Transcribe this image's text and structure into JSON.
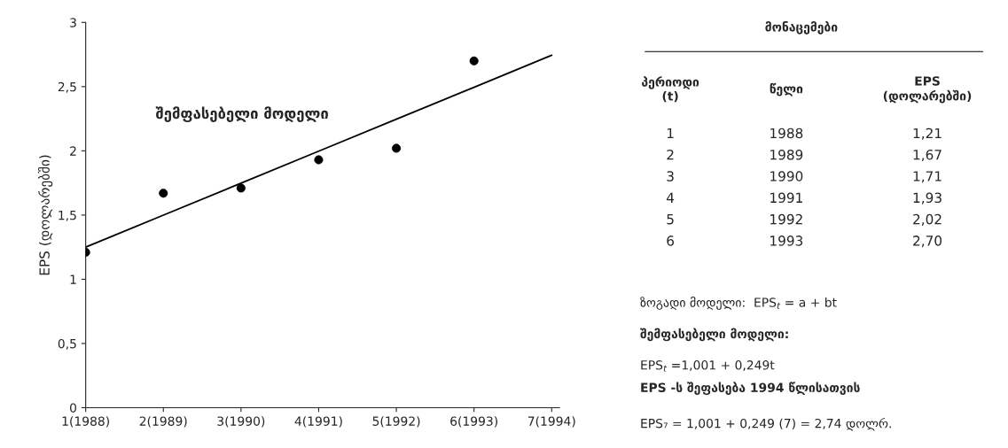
{
  "chart_data": {
    "type": "scatter",
    "ylabel": "EPS (დოლარებში)",
    "categories": [
      "1(1988)",
      "2(1989)",
      "3(1990)",
      "4(1991)",
      "5(1992)",
      "6(1993)",
      "7(1994)"
    ],
    "ylim": [
      0,
      3
    ],
    "yticks": [
      0,
      {
        "value": 0.5,
        "label": "0,5"
      },
      1,
      {
        "value": 1.5,
        "label": "1,5"
      },
      2,
      {
        "value": 2.5,
        "label": "2,5"
      },
      3
    ],
    "series": [
      {
        "color": "#000000",
        "values": [
          1.21,
          1.67,
          1.71,
          1.93,
          2.02,
          2.7,
          null
        ]
      },
      {
        "type": "line",
        "marker": "none",
        "name": "შემფასებელი მოდელი",
        "color": "#000000",
        "values": [
          1.25,
          1.499,
          1.748,
          1.997,
          2.246,
          2.495,
          2.744
        ]
      }
    ],
    "marker": "circle",
    "annotations": [
      "მონაცემები",
      "პერიოდი\n(t)",
      "წელი",
      "EPS\n(დოლარებში)",
      "1",
      "2",
      "3",
      "4",
      "5",
      "6",
      "1988",
      "1989",
      "1990",
      "1991",
      "1992",
      "1993",
      "1,21",
      "1,67",
      "1,71",
      "1,93",
      "2,02",
      "2,70",
      "ზოგადი მოდელი:  EPS$_{t}$ = a + bt",
      "შემფასებელი მოდელი:",
      "EPS$_{t}$ =1,001 + 0,249t",
      "EPS -ს შეფასება 1994 წლისათვის",
      "EPS₇ = 1,001 + 0,249 (7) = 2,74 დოლრ."
    ]
  }
}
